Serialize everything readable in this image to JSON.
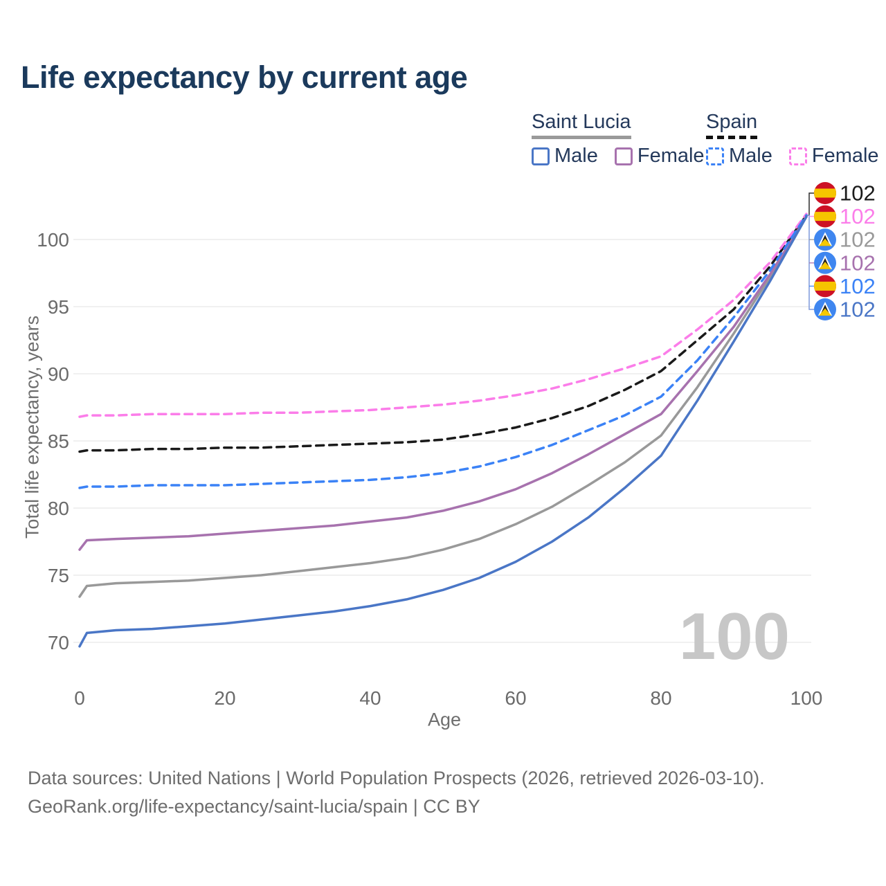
{
  "title": "Life expectancy by current age",
  "legend": {
    "groups": [
      {
        "label": "Saint Lucia",
        "line_style": "solid",
        "underline_color": "#9a9a9a",
        "items": [
          {
            "label": "Male",
            "color": "#4a76c6"
          },
          {
            "label": "Female",
            "color": "#a772ae"
          }
        ]
      },
      {
        "label": "Spain",
        "line_style": "dashed",
        "underline_color": "#111111",
        "items": [
          {
            "label": "Male",
            "color": "#3b82f6"
          },
          {
            "label": "Female",
            "color": "#fb7de9"
          }
        ]
      }
    ]
  },
  "footer": {
    "line1": "Data sources: United Nations | World Population Prospects (2026, retrieved 2026-03-10).",
    "line2": "GeoRank.org/life-expectancy/saint-lucia/spain | CC BY"
  },
  "chart_data": {
    "type": "line",
    "title": "Life expectancy by current age",
    "xlabel": "Age",
    "ylabel": "Total life expectancy, years",
    "xlim": [
      0,
      100
    ],
    "ylim": [
      69.5,
      102
    ],
    "x_ticks": [
      0,
      20,
      40,
      60,
      80,
      100
    ],
    "y_ticks": [
      70,
      75,
      80,
      85,
      90,
      95,
      100
    ],
    "grid": "horizontal-only",
    "legend_position": "top-right",
    "current_age_watermark": "100",
    "x": [
      0,
      1,
      5,
      10,
      15,
      20,
      25,
      30,
      35,
      40,
      45,
      50,
      55,
      60,
      65,
      70,
      75,
      80,
      85,
      90,
      95,
      100
    ],
    "series": [
      {
        "id": "spain-total",
        "name": "Spain",
        "country": "Spain",
        "sex": "Total",
        "color": "#1a1a1a",
        "dashed": true,
        "flag": "spain",
        "end_label": "102",
        "label_row": 0,
        "values": [
          84.2,
          84.3,
          84.3,
          84.4,
          84.4,
          84.5,
          84.5,
          84.6,
          84.7,
          84.8,
          84.9,
          85.1,
          85.5,
          86.0,
          86.7,
          87.6,
          88.8,
          90.2,
          92.5,
          94.8,
          98.0,
          101.8
        ]
      },
      {
        "id": "spain-female",
        "name": "Spain Female",
        "country": "Spain",
        "sex": "Female",
        "color": "#fb7de9",
        "dashed": true,
        "flag": "spain",
        "end_label": "102",
        "label_row": 1,
        "values": [
          86.8,
          86.9,
          86.9,
          87.0,
          87.0,
          87.0,
          87.1,
          87.1,
          87.2,
          87.3,
          87.5,
          87.7,
          88.0,
          88.4,
          88.9,
          89.6,
          90.4,
          91.3,
          93.3,
          95.5,
          98.3,
          101.9
        ]
      },
      {
        "id": "saint-lucia-total",
        "name": "Saint Lucia",
        "country": "Saint Lucia",
        "sex": "Total",
        "color": "#999999",
        "dashed": false,
        "flag": "saint-lucia",
        "end_label": "102",
        "label_row": 2,
        "values": [
          73.4,
          74.2,
          74.4,
          74.5,
          74.6,
          74.8,
          75.0,
          75.3,
          75.6,
          75.9,
          76.3,
          76.9,
          77.7,
          78.8,
          80.1,
          81.7,
          83.4,
          85.4,
          89.0,
          93.0,
          97.2,
          101.7
        ]
      },
      {
        "id": "saint-lucia-female",
        "name": "Saint Lucia Female",
        "country": "Saint Lucia",
        "sex": "Female",
        "color": "#a772ae",
        "dashed": false,
        "flag": "saint-lucia",
        "end_label": "102",
        "label_row": 3,
        "values": [
          76.9,
          77.6,
          77.7,
          77.8,
          77.9,
          78.1,
          78.3,
          78.5,
          78.7,
          79.0,
          79.3,
          79.8,
          80.5,
          81.4,
          82.6,
          84.0,
          85.5,
          87.0,
          90.2,
          93.5,
          97.4,
          101.7
        ]
      },
      {
        "id": "spain-male",
        "name": "Spain Male",
        "country": "Spain",
        "sex": "Male",
        "color": "#3b82f6",
        "dashed": true,
        "flag": "spain",
        "end_label": "102",
        "label_row": 4,
        "values": [
          81.5,
          81.6,
          81.6,
          81.7,
          81.7,
          81.7,
          81.8,
          81.9,
          82.0,
          82.1,
          82.3,
          82.6,
          83.1,
          83.8,
          84.7,
          85.8,
          86.9,
          88.3,
          91.0,
          94.2,
          97.7,
          101.8
        ]
      },
      {
        "id": "saint-lucia-male",
        "name": "Saint Lucia Male",
        "country": "Saint Lucia",
        "sex": "Male",
        "color": "#4a76c6",
        "dashed": false,
        "flag": "saint-lucia",
        "end_label": "102",
        "label_row": 5,
        "values": [
          69.7,
          70.7,
          70.9,
          71.0,
          71.2,
          71.4,
          71.7,
          72.0,
          72.3,
          72.7,
          73.2,
          73.9,
          74.8,
          76.0,
          77.5,
          79.3,
          81.5,
          83.9,
          88.0,
          92.4,
          96.9,
          101.7
        ]
      }
    ]
  }
}
